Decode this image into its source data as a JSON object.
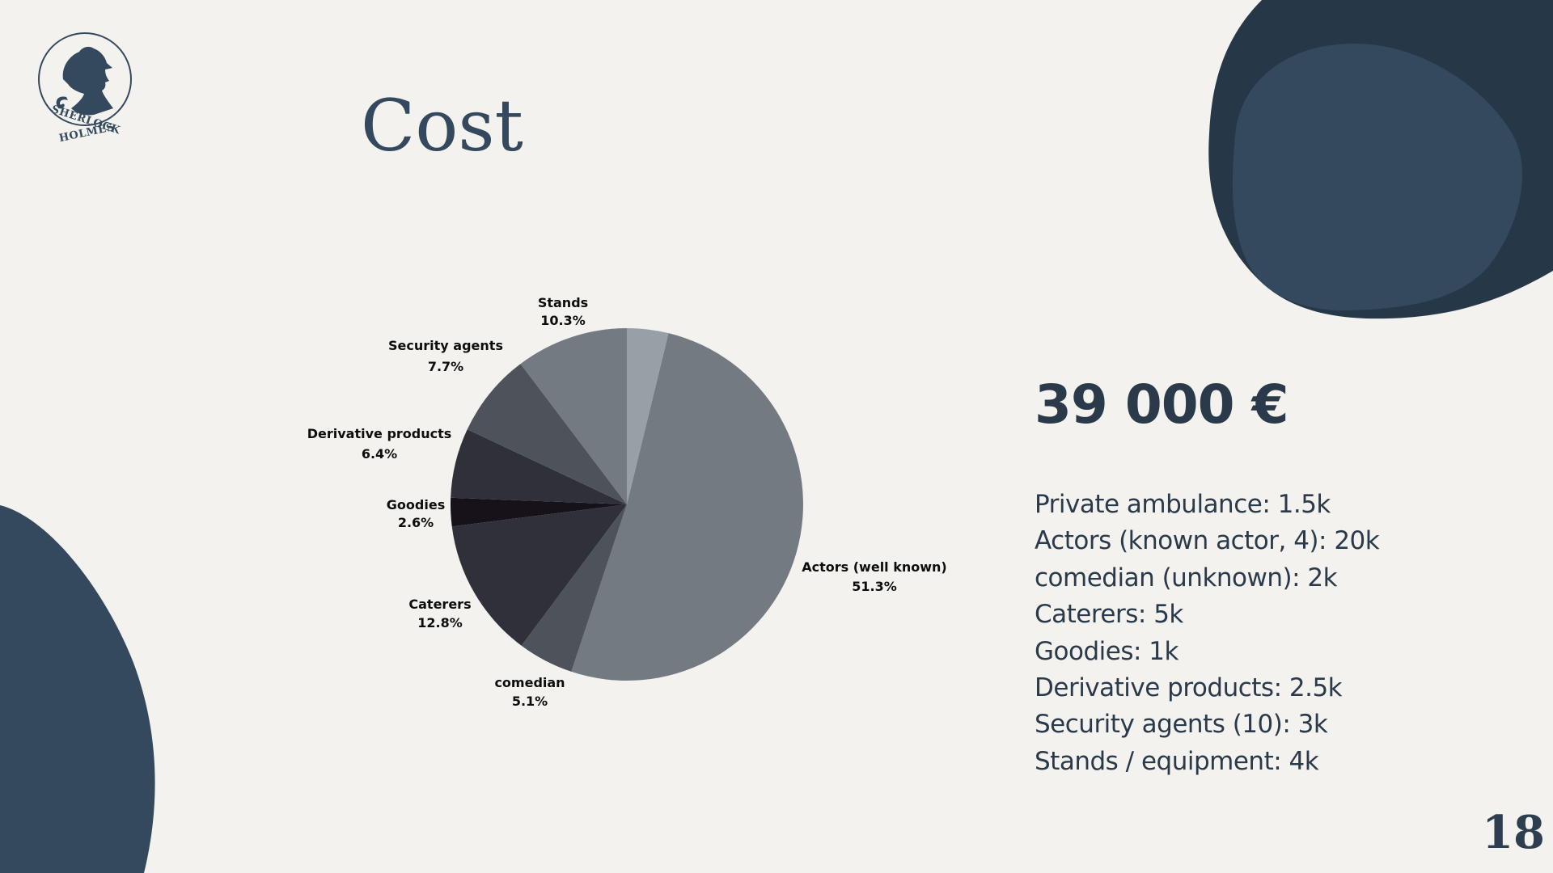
{
  "slide": {
    "title": "Cost",
    "total": "39 000 €",
    "page_number": "18",
    "logo": {
      "icon": "sherlock-holmes-silhouette-icon",
      "line1": "SHERLOCK",
      "line2": "HOLMES"
    },
    "breakdown": [
      "Private ambulance: 1.5k",
      "Actors (known actor, 4): 20k",
      "comedian (unknown): 2k",
      "Caterers: 5k",
      "Goodies: 1k",
      "Derivative products: 2.5k",
      "Security agents (10): 3k",
      "Stands / equipment: 4k"
    ],
    "colors": {
      "background": "#f3f2ee",
      "accent": "#34495e",
      "accent_dark": "#263848",
      "text": "#2a3a4a"
    }
  },
  "chart_data": {
    "type": "pie",
    "title": "",
    "start": "top",
    "direction": "clockwise",
    "slices": [
      {
        "label": "",
        "percent": "",
        "value": 3.8,
        "color": "#97a0a6"
      },
      {
        "label": "Actors (well known)",
        "percent": "51.3%",
        "value": 51.3,
        "color": "#747a82"
      },
      {
        "label": "comedian",
        "percent": "5.1%",
        "value": 5.1,
        "color": "#4e525b"
      },
      {
        "label": "Caterers",
        "percent": "12.8%",
        "value": 12.8,
        "color": "#30303a"
      },
      {
        "label": "Goodies",
        "percent": "2.6%",
        "value": 2.6,
        "color": "#17121a"
      },
      {
        "label": "Derivative products",
        "percent": "6.4%",
        "value": 6.4,
        "color": "#30303a"
      },
      {
        "label": "Security agents",
        "percent": "7.7%",
        "value": 7.7,
        "color": "#4e525b"
      },
      {
        "label": "Stands",
        "percent": "10.3%",
        "value": 10.3,
        "color": "#747a82"
      }
    ]
  }
}
